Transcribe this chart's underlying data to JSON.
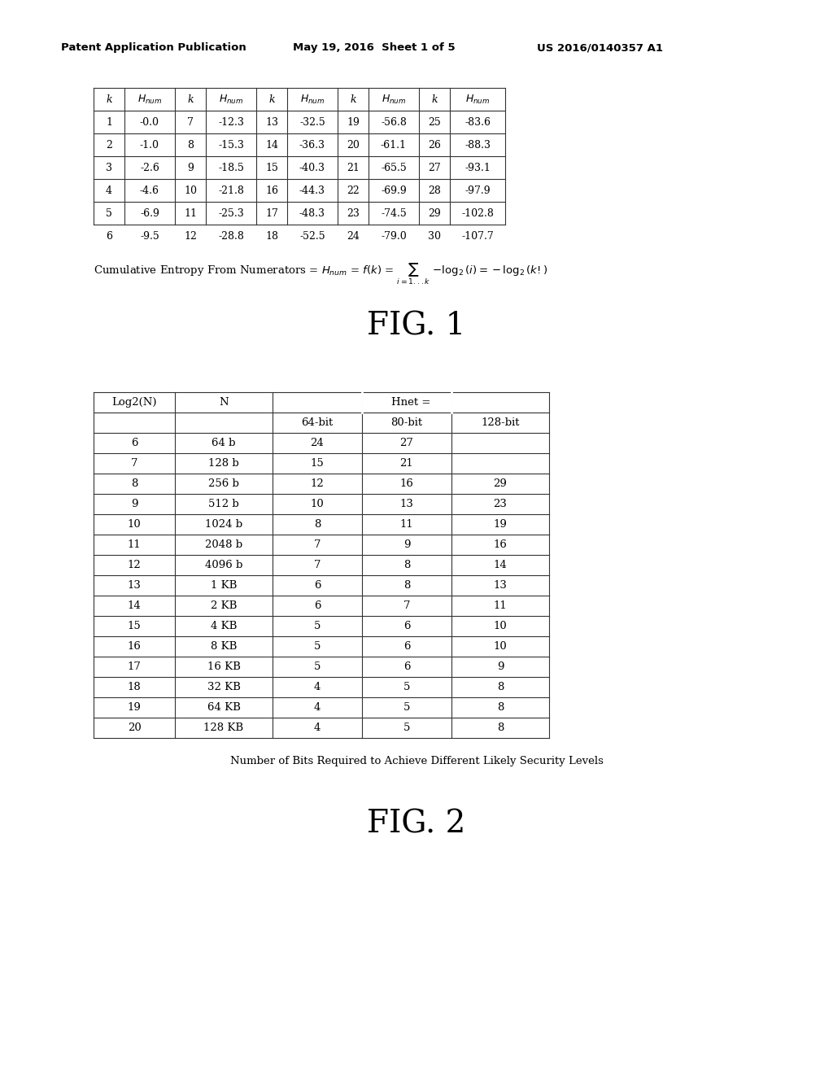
{
  "header_left": "Patent Application Publication",
  "header_mid": "May 19, 2016  Sheet 1 of 5",
  "header_right": "US 2016/0140357 A1",
  "fig1_title": "FIG. 1",
  "fig2_title": "FIG. 2",
  "table1_headers": [
    "k",
    "H_num",
    "k",
    "H_num",
    "k",
    "H_num",
    "k",
    "H_num",
    "k",
    "H_num"
  ],
  "table1_data": [
    [
      "1",
      "-0.0",
      "7",
      "-12.3",
      "13",
      "-32.5",
      "19",
      "-56.8",
      "25",
      "-83.6"
    ],
    [
      "2",
      "-1.0",
      "8",
      "-15.3",
      "14",
      "-36.3",
      "20",
      "-61.1",
      "26",
      "-88.3"
    ],
    [
      "3",
      "-2.6",
      "9",
      "-18.5",
      "15",
      "-40.3",
      "21",
      "-65.5",
      "27",
      "-93.1"
    ],
    [
      "4",
      "-4.6",
      "10",
      "-21.8",
      "16",
      "-44.3",
      "22",
      "-69.9",
      "28",
      "-97.9"
    ],
    [
      "5",
      "-6.9",
      "11",
      "-25.3",
      "17",
      "-48.3",
      "23",
      "-74.5",
      "29",
      "-102.8"
    ],
    [
      "6",
      "-9.5",
      "12",
      "-28.8",
      "18",
      "-52.5",
      "24",
      "-79.0",
      "30",
      "-107.7"
    ]
  ],
  "formula_text": "Cumulative Entropy From Numerators = ",
  "table2_col_headers_row1": [
    "Log2(N)",
    "N",
    "Hnet =",
    "",
    ""
  ],
  "table2_col_headers_row2": [
    "",
    "",
    "64-bit",
    "80-bit",
    "128-bit"
  ],
  "table2_data": [
    [
      "6",
      "64 b",
      "24",
      "27",
      ""
    ],
    [
      "7",
      "128 b",
      "15",
      "21",
      ""
    ],
    [
      "8",
      "256 b",
      "12",
      "16",
      "29"
    ],
    [
      "9",
      "512 b",
      "10",
      "13",
      "23"
    ],
    [
      "10",
      "1024 b",
      "8",
      "11",
      "19"
    ],
    [
      "11",
      "2048 b",
      "7",
      "9",
      "16"
    ],
    [
      "12",
      "4096 b",
      "7",
      "8",
      "14"
    ],
    [
      "13",
      "1 KB",
      "6",
      "8",
      "13"
    ],
    [
      "14",
      "2 KB",
      "6",
      "7",
      "11"
    ],
    [
      "15",
      "4 KB",
      "5",
      "6",
      "10"
    ],
    [
      "16",
      "8 KB",
      "5",
      "6",
      "10"
    ],
    [
      "17",
      "16 KB",
      "5",
      "6",
      "9"
    ],
    [
      "18",
      "32 KB",
      "4",
      "5",
      "8"
    ],
    [
      "19",
      "64 KB",
      "4",
      "5",
      "8"
    ],
    [
      "20",
      "128 KB",
      "4",
      "5",
      "8"
    ]
  ],
  "table2_caption": "Number of Bits Required to Achieve Different Likely Security Levels",
  "bg_color": "#ffffff",
  "text_color": "#000000",
  "line_color": "#555555"
}
